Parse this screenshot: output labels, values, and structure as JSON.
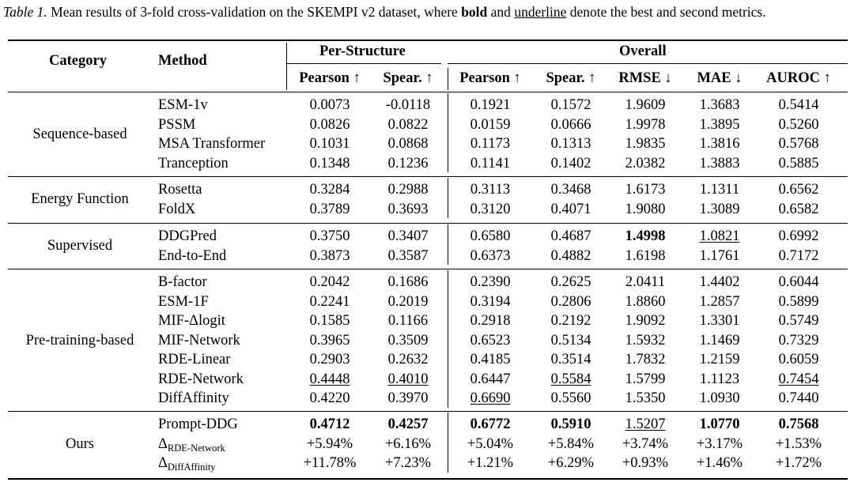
{
  "caption": {
    "label": "Table 1.",
    "text_1": "Mean results of 3-fold cross-validation on the SKEMPI v2 dataset, where",
    "bold_word": "bold",
    "text_2": "and",
    "underline_word": "underline",
    "text_3": "denote the best and second metrics."
  },
  "header": {
    "category": "Category",
    "method": "Method",
    "per_structure": "Per-Structure",
    "overall": "Overall",
    "columns": [
      "Pearson ↑",
      "Spear. ↑",
      "Pearson ↑",
      "Spear. ↑",
      "RMSE ↓",
      "MAE ↓",
      "AUROC ↑"
    ]
  },
  "groups": [
    {
      "category": "Sequence-based",
      "rows": [
        {
          "method": "ESM-1v",
          "values": [
            "0.0073",
            "-0.0118",
            "0.1921",
            "0.1572",
            "1.9609",
            "1.3683",
            "0.5414"
          ]
        },
        {
          "method": "PSSM",
          "values": [
            "0.0826",
            "0.0822",
            "0.0159",
            "0.0666",
            "1.9978",
            "1.3895",
            "0.5260"
          ]
        },
        {
          "method": "MSA Transformer",
          "values": [
            "0.1031",
            "0.0868",
            "0.1173",
            "0.1313",
            "1.9835",
            "1.3816",
            "0.5768"
          ]
        },
        {
          "method": "Tranception",
          "values": [
            "0.1348",
            "0.1236",
            "0.1141",
            "0.1402",
            "2.0382",
            "1.3883",
            "0.5885"
          ]
        }
      ]
    },
    {
      "category": "Energy Function",
      "rows": [
        {
          "method": "Rosetta",
          "values": [
            "0.3284",
            "0.2988",
            "0.3113",
            "0.3468",
            "1.6173",
            "1.1311",
            "0.6562"
          ]
        },
        {
          "method": "FoldX",
          "values": [
            "0.3789",
            "0.3693",
            "0.3120",
            "0.4071",
            "1.9080",
            "1.3089",
            "0.6582"
          ]
        }
      ]
    },
    {
      "category": "Supervised",
      "rows": [
        {
          "method": "DDGPred",
          "values": [
            "0.3750",
            "0.3407",
            "0.6580",
            "0.4687",
            "1.4998",
            "1.0821",
            "0.6992"
          ],
          "bold": [
            4
          ],
          "under": [
            5
          ]
        },
        {
          "method": "End-to-End",
          "values": [
            "0.3873",
            "0.3587",
            "0.6373",
            "0.4882",
            "1.6198",
            "1.1761",
            "0.7172"
          ]
        }
      ]
    },
    {
      "category": "Pre-training-based",
      "rows": [
        {
          "method": "B-factor",
          "values": [
            "0.2042",
            "0.1686",
            "0.2390",
            "0.2625",
            "2.0411",
            "1.4402",
            "0.6044"
          ]
        },
        {
          "method": "ESM-1F",
          "values": [
            "0.2241",
            "0.2019",
            "0.3194",
            "0.2806",
            "1.8860",
            "1.2857",
            "0.5899"
          ]
        },
        {
          "method": "MIF-Δlogit",
          "values": [
            "0.1585",
            "0.1166",
            "0.2918",
            "0.2192",
            "1.9092",
            "1.3301",
            "0.5749"
          ]
        },
        {
          "method": "MIF-Network",
          "values": [
            "0.3965",
            "0.3509",
            "0.6523",
            "0.5134",
            "1.5932",
            "1.1469",
            "0.7329"
          ]
        },
        {
          "method": "RDE-Linear",
          "values": [
            "0.2903",
            "0.2632",
            "0.4185",
            "0.3514",
            "1.7832",
            "1.2159",
            "0.6059"
          ]
        },
        {
          "method": "RDE-Network",
          "values": [
            "0.4448",
            "0.4010",
            "0.6447",
            "0.5584",
            "1.5799",
            "1.1123",
            "0.7454"
          ],
          "under": [
            0,
            1,
            3,
            6
          ]
        },
        {
          "method": "DiffAffinity",
          "values": [
            "0.4220",
            "0.3970",
            "0.6690",
            "0.5560",
            "1.5350",
            "1.0930",
            "0.7440"
          ],
          "under": [
            2
          ]
        }
      ]
    },
    {
      "category": "Ours",
      "rows": [
        {
          "method": "Prompt-DDG",
          "values": [
            "0.4712",
            "0.4257",
            "0.6772",
            "0.5910",
            "1.5207",
            "1.0770",
            "0.7568"
          ],
          "bold": [
            0,
            1,
            2,
            3,
            5,
            6
          ],
          "under": [
            4
          ]
        },
        {
          "method": "Δ",
          "method_sub": "RDE-Network",
          "values": [
            "+5.94%",
            "+6.16%",
            "+5.04%",
            "+5.84%",
            "+3.74%",
            "+3.17%",
            "+1.53%"
          ]
        },
        {
          "method": "Δ",
          "method_sub": "DiffAffinity",
          "values": [
            "+11.78%",
            "+7.23%",
            "+1.21%",
            "+6.29%",
            "+0.93%",
            "+1.46%",
            "+1.72%"
          ]
        }
      ]
    }
  ]
}
